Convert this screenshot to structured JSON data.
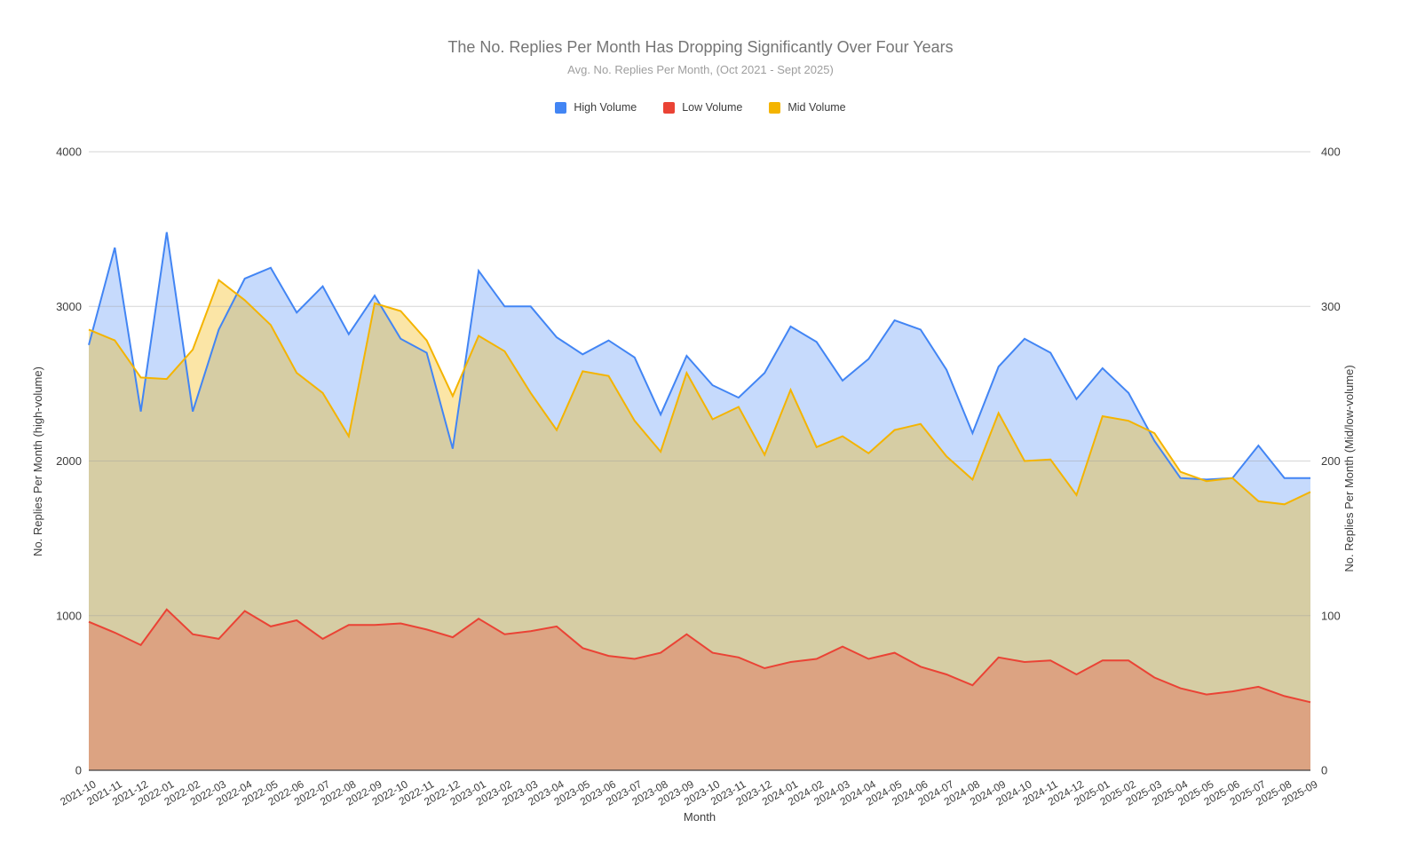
{
  "chart_data": {
    "type": "area",
    "title": "The No. Replies Per Month Has Dropping Significantly Over Four Years",
    "subtitle": "Avg. No. Replies Per Month, (Oct 2021 - Sept 2025)",
    "xlabel": "Month",
    "ylabel_left": "No. Replies Per Month (high-volume)",
    "ylabel_right": "No. Replies Per Month (Mid/low-volume)",
    "grid": true,
    "legend_position": "top",
    "axes": {
      "left": {
        "min": 0,
        "max": 4000,
        "ticks": [
          0,
          1000,
          2000,
          3000,
          4000
        ]
      },
      "right": {
        "min": 0,
        "max": 400,
        "ticks": [
          0,
          100,
          200,
          300,
          400
        ]
      }
    },
    "x_categories": [
      "2021-10",
      "2021-11",
      "2021-12",
      "2022-01",
      "2022-02",
      "2022-03",
      "2022-04",
      "2022-05",
      "2022-06",
      "2022-07",
      "2022-08",
      "2022-09",
      "2022-10",
      "2022-11",
      "2022-12",
      "2023-01",
      "2023-02",
      "2023-03",
      "2023-04",
      "2023-05",
      "2023-06",
      "2023-07",
      "2023-08",
      "2023-09",
      "2023-10",
      "2023-11",
      "2023-12",
      "2024-01",
      "2024-02",
      "2024-03",
      "2024-04",
      "2024-05",
      "2024-06",
      "2024-07",
      "2024-08",
      "2024-09",
      "2024-10",
      "2024-11",
      "2024-12",
      "2025-01",
      "2025-02",
      "2025-03",
      "2025-04",
      "2025-05",
      "2025-06",
      "2025-07",
      "2025-08",
      "2025-09"
    ],
    "draw_order": [
      0,
      2,
      1
    ],
    "series": [
      {
        "name": "High Volume",
        "axis": "left",
        "color": "#4285F4",
        "fill_opacity": 0.3,
        "values": [
          2750,
          3380,
          2320,
          3480,
          2320,
          2850,
          3180,
          3250,
          2960,
          3130,
          2820,
          3070,
          2790,
          2700,
          2080,
          3230,
          3000,
          3000,
          2800,
          2690,
          2780,
          2670,
          2300,
          2680,
          2490,
          2410,
          2570,
          2870,
          2770,
          2520,
          2660,
          2910,
          2850,
          2590,
          2180,
          2610,
          2790,
          2700,
          2400,
          2600,
          2440,
          2130,
          1890,
          1880,
          1890,
          2100,
          1890,
          1890
        ]
      },
      {
        "name": "Low Volume",
        "axis": "right",
        "color": "#EA4335",
        "fill_opacity": 0.3,
        "values": [
          96,
          89,
          81,
          104,
          88,
          85,
          103,
          93,
          97,
          85,
          94,
          94,
          95,
          91,
          86,
          98,
          88,
          90,
          93,
          79,
          74,
          72,
          76,
          88,
          76,
          73,
          66,
          70,
          72,
          80,
          72,
          76,
          67,
          62,
          55,
          73,
          70,
          71,
          62,
          71,
          71,
          60,
          53,
          49,
          51,
          54,
          48,
          44
        ]
      },
      {
        "name": "Mid Volume",
        "axis": "right",
        "color": "#F4B400",
        "fill_opacity": 0.35,
        "values": [
          285,
          278,
          254,
          253,
          272,
          317,
          304,
          288,
          257,
          244,
          216,
          302,
          297,
          278,
          242,
          281,
          271,
          244,
          220,
          258,
          255,
          226,
          206,
          257,
          227,
          235,
          204,
          246,
          209,
          216,
          205,
          220,
          224,
          203,
          188,
          231,
          200,
          201,
          178,
          229,
          226,
          218,
          193,
          187,
          189,
          174,
          172,
          180
        ]
      }
    ],
    "gridline_color": "#9e9e9e",
    "axis_line_color": "#424242"
  }
}
